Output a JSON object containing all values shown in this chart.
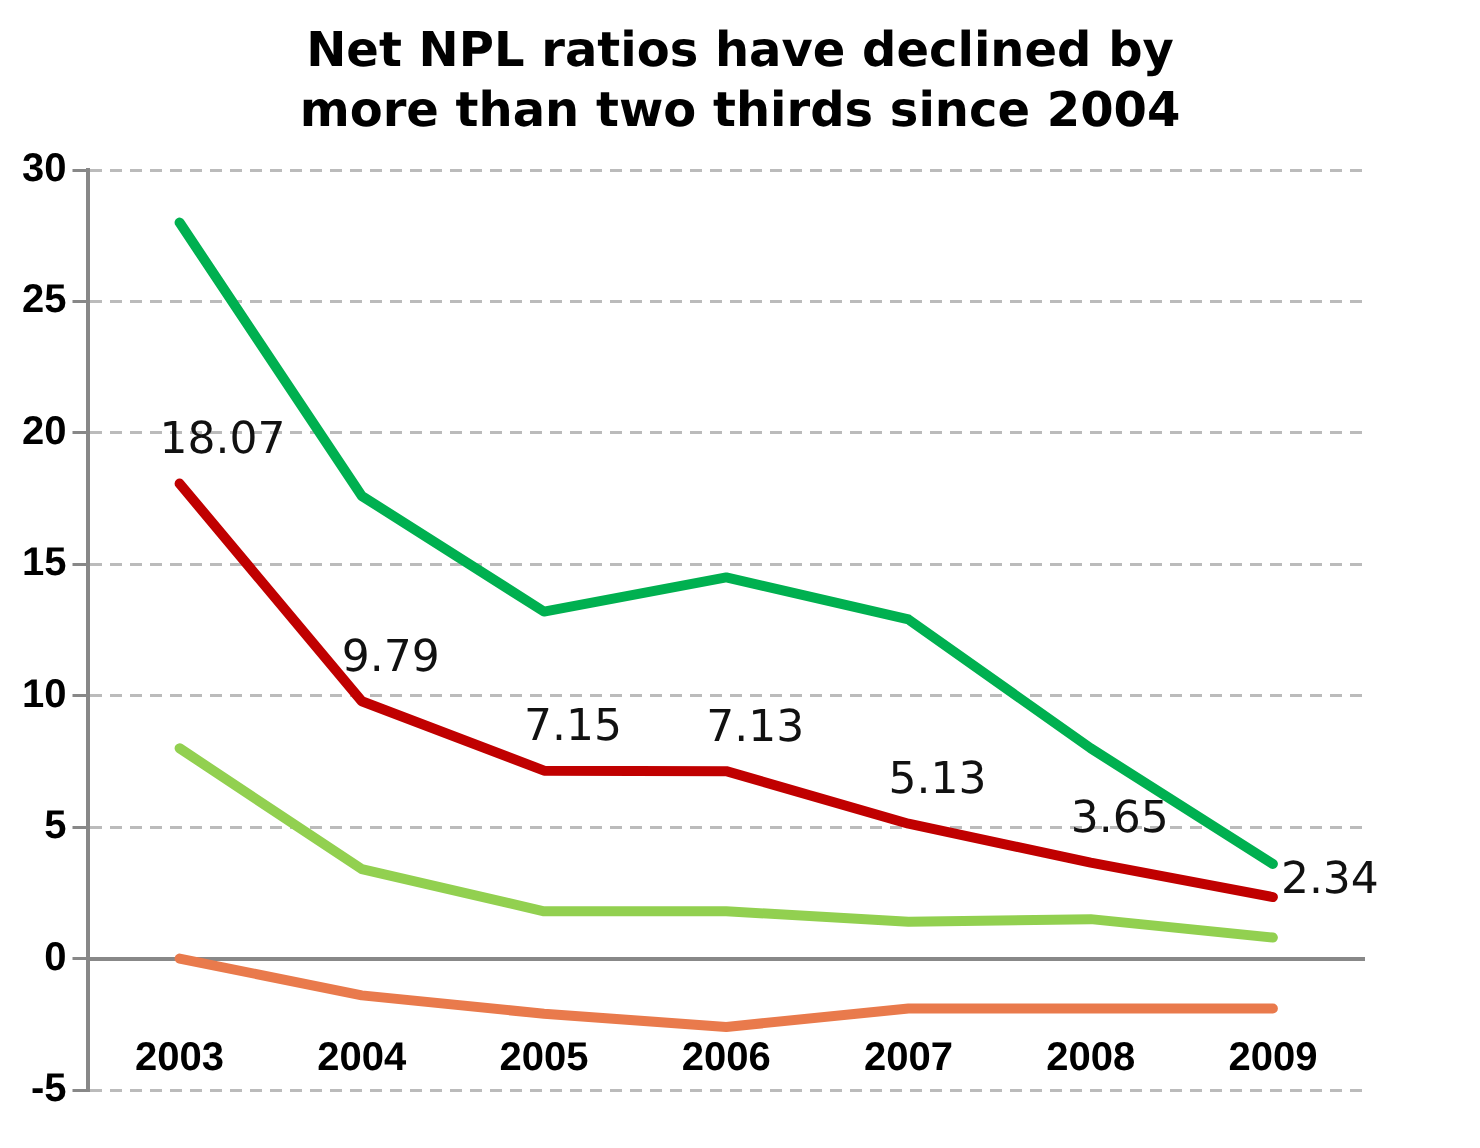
{
  "chart_data": {
    "type": "line",
    "title": "Net NPL ratios have declined by more than two thirds since 2004",
    "categories": [
      "2003",
      "2004",
      "2005",
      "2006",
      "2007",
      "2008",
      "2009"
    ],
    "series": [
      {
        "color": "#00b050",
        "values": [
          28.0,
          17.6,
          13.2,
          14.5,
          12.9,
          8.0,
          3.6
        ]
      },
      {
        "color": "#c00000",
        "values": [
          18.07,
          9.79,
          7.15,
          7.13,
          5.13,
          3.65,
          2.34
        ],
        "value_labels": [
          "18.07",
          "9.79",
          "7.15",
          "7.13",
          "5.13",
          "3.65",
          "2.34"
        ]
      },
      {
        "color": "#92d050",
        "values": [
          8.0,
          3.4,
          1.8,
          1.8,
          1.4,
          1.5,
          0.8
        ]
      },
      {
        "color": "#e97a4c",
        "values": [
          0.0,
          -1.4,
          -2.1,
          -2.6,
          -1.9,
          -1.9,
          -1.9
        ]
      }
    ],
    "ylim": [
      -5,
      30
    ],
    "yticks": [
      -5,
      0,
      5,
      10,
      15,
      20,
      25,
      30
    ],
    "grid": "y",
    "legend": false,
    "marker": "none",
    "line_style": "solid"
  }
}
